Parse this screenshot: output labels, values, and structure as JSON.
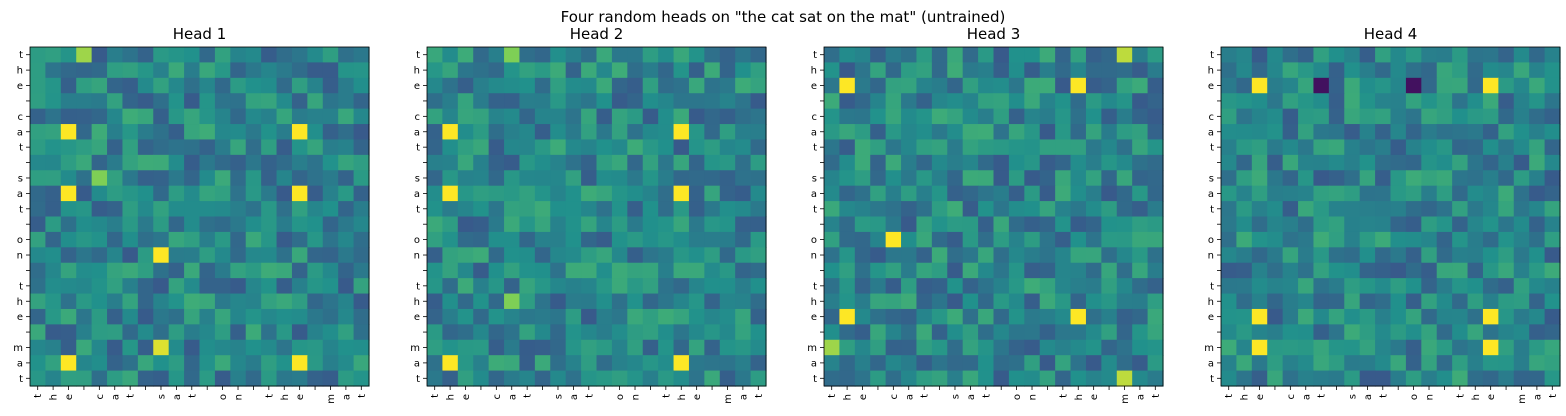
{
  "figure": {
    "suptitle": "Four random heads on \"the cat sat on the mat\" (untrained)"
  },
  "chart_data": [
    {
      "type": "heatmap",
      "title": "Head 1",
      "x_tick_labels": [
        "t",
        "h",
        "e",
        " ",
        "c",
        "a",
        "t",
        " ",
        "s",
        "a",
        "t",
        " ",
        "o",
        "n",
        " ",
        "t",
        "h",
        "e",
        " ",
        "m",
        "a",
        "t"
      ],
      "y_tick_labels": [
        "t",
        "h",
        "e",
        " ",
        "c",
        "a",
        "t",
        " ",
        "s",
        "a",
        "t",
        " ",
        "o",
        "n",
        " ",
        "t",
        "h",
        "e",
        " ",
        "m",
        "a",
        "t"
      ],
      "colormap": "viridis",
      "value_scale": "relative 0–1 (no colorbar shown)",
      "salient_values": [
        {
          "row": 5,
          "col": 2,
          "value": 1.0
        },
        {
          "row": 5,
          "col": 17,
          "value": 1.0
        },
        {
          "row": 9,
          "col": 2,
          "value": 1.0
        },
        {
          "row": 9,
          "col": 17,
          "value": 1.0
        },
        {
          "row": 13,
          "col": 8,
          "value": 1.0
        },
        {
          "row": 20,
          "col": 2,
          "value": 1.0
        },
        {
          "row": 20,
          "col": 17,
          "value": 1.0
        },
        {
          "row": 19,
          "col": 8,
          "value": 0.95
        },
        {
          "row": 0,
          "col": 3,
          "value": 0.85
        },
        {
          "row": 8,
          "col": 4,
          "value": 0.8
        }
      ]
    },
    {
      "type": "heatmap",
      "title": "Head 2",
      "x_tick_labels": [
        "t",
        "h",
        "e",
        " ",
        "c",
        "a",
        "t",
        " ",
        "s",
        "a",
        "t",
        " ",
        "o",
        "n",
        " ",
        "t",
        "h",
        "e",
        " ",
        "m",
        "a",
        "t"
      ],
      "y_tick_labels": [
        "t",
        "h",
        "e",
        " ",
        "c",
        "a",
        "t",
        " ",
        "s",
        "a",
        "t",
        " ",
        "o",
        "n",
        " ",
        "t",
        "h",
        "e",
        " ",
        "m",
        "a",
        "t"
      ],
      "colormap": "viridis",
      "value_scale": "relative 0–1 (no colorbar shown)",
      "salient_values": [
        {
          "row": 5,
          "col": 1,
          "value": 1.0
        },
        {
          "row": 5,
          "col": 16,
          "value": 1.0
        },
        {
          "row": 9,
          "col": 1,
          "value": 1.0
        },
        {
          "row": 9,
          "col": 16,
          "value": 1.0
        },
        {
          "row": 20,
          "col": 1,
          "value": 1.0
        },
        {
          "row": 20,
          "col": 16,
          "value": 1.0
        },
        {
          "row": 0,
          "col": 5,
          "value": 0.8
        },
        {
          "row": 16,
          "col": 5,
          "value": 0.8
        }
      ]
    },
    {
      "type": "heatmap",
      "title": "Head 3",
      "x_tick_labels": [
        "t",
        "h",
        "e",
        " ",
        "c",
        "a",
        "t",
        " ",
        "s",
        "a",
        "t",
        " ",
        "o",
        "n",
        " ",
        "t",
        "h",
        "e",
        " ",
        "m",
        "a",
        "t"
      ],
      "y_tick_labels": [
        "t",
        "h",
        "e",
        " ",
        "c",
        "a",
        "t",
        " ",
        "s",
        "a",
        "t",
        " ",
        "o",
        "n",
        " ",
        "t",
        "h",
        "e",
        " ",
        "m",
        "a",
        "t"
      ],
      "colormap": "viridis",
      "value_scale": "relative 0–1 (no colorbar shown)",
      "salient_values": [
        {
          "row": 2,
          "col": 1,
          "value": 1.0
        },
        {
          "row": 2,
          "col": 16,
          "value": 1.0
        },
        {
          "row": 12,
          "col": 4,
          "value": 1.0
        },
        {
          "row": 17,
          "col": 1,
          "value": 1.0
        },
        {
          "row": 17,
          "col": 16,
          "value": 1.0
        },
        {
          "row": 0,
          "col": 19,
          "value": 0.9
        },
        {
          "row": 21,
          "col": 19,
          "value": 0.9
        },
        {
          "row": 19,
          "col": 0,
          "value": 0.85
        }
      ]
    },
    {
      "type": "heatmap",
      "title": "Head 4",
      "x_tick_labels": [
        "t",
        "h",
        "e",
        " ",
        "c",
        "a",
        "t",
        " ",
        "s",
        "a",
        "t",
        " ",
        "o",
        "n",
        " ",
        "t",
        "h",
        "e",
        " ",
        "m",
        "a",
        "t"
      ],
      "y_tick_labels": [
        "t",
        "h",
        "e",
        " ",
        "c",
        "a",
        "t",
        " ",
        "s",
        "a",
        "t",
        " ",
        "o",
        "n",
        " ",
        "t",
        "h",
        "e",
        " ",
        "m",
        "a",
        "t"
      ],
      "colormap": "viridis",
      "value_scale": "relative 0–1 (no colorbar shown)",
      "salient_values": [
        {
          "row": 2,
          "col": 2,
          "value": 1.0
        },
        {
          "row": 2,
          "col": 17,
          "value": 1.0
        },
        {
          "row": 17,
          "col": 2,
          "value": 1.0
        },
        {
          "row": 17,
          "col": 17,
          "value": 1.0
        },
        {
          "row": 19,
          "col": 2,
          "value": 1.0
        },
        {
          "row": 19,
          "col": 17,
          "value": 1.0
        },
        {
          "row": 2,
          "col": 6,
          "value": 0.05
        },
        {
          "row": 2,
          "col": 12,
          "value": 0.05
        }
      ]
    }
  ]
}
